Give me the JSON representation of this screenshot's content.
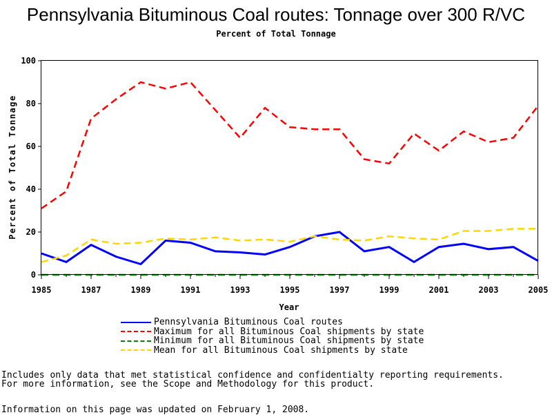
{
  "header": {
    "title": "Pennsylvania Bituminous Coal routes: Tonnage over 300 R/VC",
    "subtitle": "Percent of Total Tonnage"
  },
  "chart_data": {
    "type": "line",
    "xlabel": "Year",
    "ylabel": "Percent of Total Tonnage",
    "xlim": [
      1985,
      2005
    ],
    "ylim": [
      0,
      100
    ],
    "xticks": [
      1985,
      1987,
      1989,
      1991,
      1993,
      1995,
      1997,
      1999,
      2001,
      2003,
      2005
    ],
    "yticks": [
      0,
      20,
      40,
      60,
      80,
      100
    ],
    "legend_position": "bottom",
    "x": [
      1985,
      1986,
      1987,
      1988,
      1989,
      1990,
      1991,
      1992,
      1993,
      1994,
      1995,
      1996,
      1997,
      1998,
      1999,
      2000,
      2001,
      2002,
      2003,
      2004,
      2005
    ],
    "series": [
      {
        "name": "Pennsylvania Bituminous Coal routes",
        "color": "#0000ff",
        "style": "solid",
        "values": [
          10,
          6,
          14,
          8.5,
          5,
          16,
          15,
          11,
          10.5,
          9.5,
          13,
          18,
          20,
          11,
          13,
          6,
          13,
          14.5,
          12,
          13,
          6.5
        ]
      },
      {
        "name": "Maximum for all Bituminous Coal shipments by state",
        "color": "#ff0000",
        "style": "dashed",
        "values": [
          31,
          39,
          73,
          82,
          90,
          87,
          90,
          77,
          64,
          78,
          69,
          68,
          68,
          54,
          52,
          66,
          58,
          67,
          62,
          64,
          79
        ]
      },
      {
        "name": "Minimum for all Bituminous Coal shipments by state",
        "color": "#008000",
        "style": "dashed",
        "values": [
          0,
          0,
          0,
          0,
          0,
          0,
          0,
          0,
          0,
          0,
          0,
          0,
          0,
          0,
          0,
          0,
          0,
          0,
          0,
          0,
          0
        ]
      },
      {
        "name": "Mean for all Bituminous Coal shipments by state",
        "color": "#ffd700",
        "style": "dashed",
        "values": [
          6,
          9,
          16.5,
          14.5,
          15,
          17,
          16.5,
          17.5,
          16,
          16.5,
          15.5,
          18,
          16.5,
          16,
          18,
          17,
          16.5,
          20.5,
          20.5,
          21.5,
          21.5
        ]
      }
    ]
  },
  "notes": {
    "line1": "Includes only data that met statistical confidence and confidentialty reporting requirements.",
    "line2": "For more information, see the Scope and Methodology for this product.",
    "updated": "Information on this page was updated on February 1, 2008."
  }
}
